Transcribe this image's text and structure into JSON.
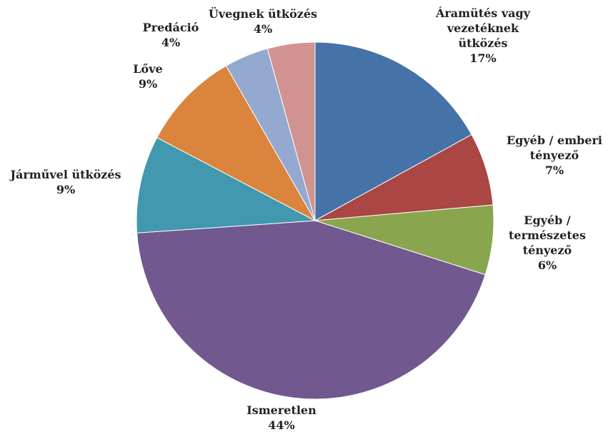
{
  "chart_data": {
    "type": "pie",
    "title": "",
    "start_angle_deg": 0,
    "direction": "clockwise",
    "legend": "none",
    "slices": [
      {
        "label_lines": [
          "Áramütés vagy",
          "vezetéknek",
          "ütközés"
        ],
        "percent_label": "17%",
        "value": 17,
        "color": "#4572A7"
      },
      {
        "label_lines": [
          "Egyéb / emberi",
          "tényező"
        ],
        "percent_label": "7%",
        "value": 6.6,
        "color": "#AA4643"
      },
      {
        "label_lines": [
          "Egyéb /",
          "természetes",
          "tényező"
        ],
        "percent_label": "6%",
        "value": 6.3,
        "color": "#89A54E"
      },
      {
        "label_lines": [
          "Ismeretlen"
        ],
        "percent_label": "44%",
        "value": 44,
        "color": "#71588F"
      },
      {
        "label_lines": [
          "Járművel ütközés"
        ],
        "percent_label": "9%",
        "value": 8.8,
        "color": "#4198AF"
      },
      {
        "label_lines": [
          "Lőve"
        ],
        "percent_label": "9%",
        "value": 9,
        "color": "#DB843D"
      },
      {
        "label_lines": [
          "Predáció"
        ],
        "percent_label": "4%",
        "value": 4,
        "color": "#93A9CF"
      },
      {
        "label_lines": [
          "Üvegnek ütközés"
        ],
        "percent_label": "4%",
        "value": 4.3,
        "color": "#D19392"
      }
    ]
  }
}
